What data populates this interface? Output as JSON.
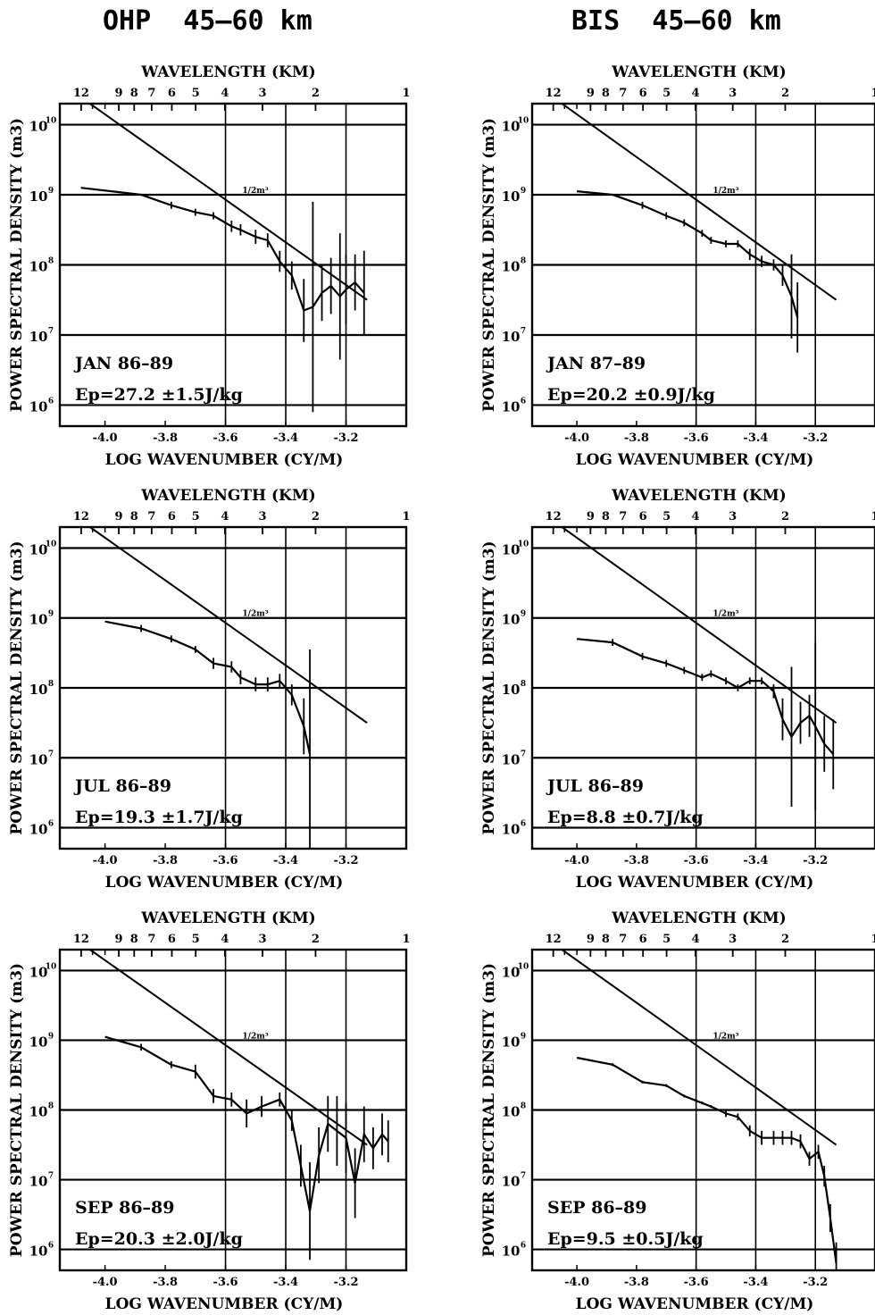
{
  "column_titles": [
    "OHP  45–60 km",
    "BIS  45–60 km"
  ],
  "chart_data": [
    {
      "type": "line",
      "station": "OHP",
      "season_label": "JAN 86–89",
      "ep_label": "Ep=27.2  ±1.5J/kg",
      "top_axis_label": "WAVELENGTH (KM)",
      "top_tick_labels": [
        "12",
        "9",
        "8",
        "7",
        "6",
        "5",
        "4",
        "3",
        "2",
        "1"
      ],
      "xlabel": "LOG WAVENUMBER (CY/M)",
      "ylabel": "POWER SPECTRAL DENSITY (m3)",
      "x_tick_labels": [
        "-4.0",
        "-3.8",
        "-3.6",
        "-3.4",
        "-3.2"
      ],
      "y_tick_labels": [
        "10",
        "10",
        "10",
        "10",
        "10"
      ],
      "y_tick_exponents": [
        "10",
        "9",
        "8",
        "7",
        "6"
      ],
      "slope_label": "1/2m³",
      "xlim": [
        -4.15,
        -3.0
      ],
      "ylim": [
        5.7,
        10.3
      ],
      "reference_line": {
        "x": [
          -4.05,
          -3.13
        ],
        "log10_y": [
          10.3,
          7.5
        ]
      },
      "x": [
        -4.08,
        -3.88,
        -3.78,
        -3.7,
        -3.64,
        -3.58,
        -3.55,
        -3.5,
        -3.46,
        -3.42,
        -3.38,
        -3.34,
        -3.31,
        -3.28,
        -3.25,
        -3.22,
        -3.2,
        -3.17,
        -3.14
      ],
      "log10_y": [
        9.1,
        9.0,
        8.85,
        8.75,
        8.7,
        8.55,
        8.5,
        8.4,
        8.35,
        8.05,
        7.85,
        7.35,
        7.4,
        7.6,
        7.7,
        7.55,
        7.65,
        7.75,
        7.6
      ],
      "error_half_log10": [
        0,
        0,
        0.05,
        0.05,
        0.05,
        0.08,
        0.08,
        0.1,
        0.1,
        0.15,
        0.2,
        0.45,
        1.5,
        0.4,
        0.4,
        0.9,
        0.5,
        0.4,
        0.6
      ]
    },
    {
      "type": "line",
      "station": "BIS",
      "season_label": "JAN 87–89",
      "ep_label": "Ep=20.2  ±0.9J/kg",
      "top_axis_label": "WAVELENGTH (KM)",
      "top_tick_labels": [
        "12",
        "9",
        "8",
        "7",
        "6",
        "5",
        "4",
        "3",
        "2",
        "1"
      ],
      "xlabel": "LOG WAVENUMBER (CY/M)",
      "ylabel": "POWER SPECTRAL DENSITY (m3)",
      "x_tick_labels": [
        "-4.0",
        "-3.8",
        "-3.6",
        "-3.4",
        "-3.2"
      ],
      "y_tick_labels": [
        "10",
        "10",
        "10",
        "10",
        "10"
      ],
      "y_tick_exponents": [
        "10",
        "9",
        "8",
        "7",
        "6"
      ],
      "slope_label": "1/2m³",
      "xlim": [
        -4.15,
        -3.0
      ],
      "ylim": [
        5.7,
        10.3
      ],
      "reference_line": {
        "x": [
          -4.05,
          -3.13
        ],
        "log10_y": [
          10.3,
          7.5
        ]
      },
      "x": [
        -4.0,
        -3.88,
        -3.78,
        -3.7,
        -3.64,
        -3.58,
        -3.55,
        -3.5,
        -3.46,
        -3.42,
        -3.38,
        -3.34,
        -3.31,
        -3.28,
        -3.26
      ],
      "log10_y": [
        9.05,
        9.0,
        8.85,
        8.7,
        8.6,
        8.45,
        8.35,
        8.3,
        8.3,
        8.15,
        8.05,
        8.0,
        7.85,
        7.55,
        7.25
      ],
      "error_half_log10": [
        0,
        0,
        0.05,
        0.05,
        0.05,
        0.05,
        0.05,
        0.05,
        0.05,
        0.08,
        0.08,
        0.08,
        0.15,
        0.6,
        0.5
      ]
    },
    {
      "type": "line",
      "station": "OHP",
      "season_label": "JUL 86–89",
      "ep_label": "Ep=19.3  ±1.7J/kg",
      "top_axis_label": "WAVELENGTH (KM)",
      "top_tick_labels": [
        "12",
        "9",
        "8",
        "7",
        "6",
        "5",
        "4",
        "3",
        "2",
        "1"
      ],
      "xlabel": "LOG WAVENUMBER (CY/M)",
      "ylabel": "POWER SPECTRAL DENSITY (m3)",
      "x_tick_labels": [
        "-4.0",
        "-3.8",
        "-3.6",
        "-3.4",
        "-3.2"
      ],
      "y_tick_labels": [
        "10",
        "10",
        "10",
        "10",
        "10"
      ],
      "y_tick_exponents": [
        "10",
        "9",
        "8",
        "7",
        "6"
      ],
      "slope_label": "1/2m³",
      "xlim": [
        -4.15,
        -3.0
      ],
      "ylim": [
        5.7,
        10.3
      ],
      "reference_line": {
        "x": [
          -4.05,
          -3.13
        ],
        "log10_y": [
          10.3,
          7.5
        ]
      },
      "x": [
        -4.0,
        -3.88,
        -3.78,
        -3.7,
        -3.64,
        -3.58,
        -3.55,
        -3.5,
        -3.46,
        -3.42,
        -3.38,
        -3.34,
        -3.32
      ],
      "log10_y": [
        8.95,
        8.85,
        8.7,
        8.55,
        8.35,
        8.3,
        8.15,
        8.05,
        8.05,
        8.1,
        7.9,
        7.45,
        7.05
      ],
      "error_half_log10": [
        0,
        0.05,
        0.05,
        0.05,
        0.08,
        0.08,
        0.1,
        0.1,
        0.1,
        0.1,
        0.15,
        0.4,
        1.5
      ]
    },
    {
      "type": "line",
      "station": "BIS",
      "season_label": "JUL 86–89",
      "ep_label": "Ep=8.8   ±0.7J/kg",
      "top_axis_label": "WAVELENGTH (KM)",
      "top_tick_labels": [
        "12",
        "9",
        "8",
        "7",
        "6",
        "5",
        "4",
        "3",
        "2",
        "1"
      ],
      "xlabel": "LOG WAVENUMBER (CY/M)",
      "ylabel": "POWER SPECTRAL DENSITY (m3)",
      "x_tick_labels": [
        "-4.0",
        "-3.8",
        "-3.6",
        "-3.4",
        "-3.2"
      ],
      "y_tick_labels": [
        "10",
        "10",
        "10",
        "10",
        "10"
      ],
      "y_tick_exponents": [
        "10",
        "9",
        "8",
        "7",
        "6"
      ],
      "slope_label": "1/2m³",
      "xlim": [
        -4.15,
        -3.0
      ],
      "ylim": [
        5.7,
        10.3
      ],
      "reference_line": {
        "x": [
          -4.05,
          -3.13
        ],
        "log10_y": [
          10.3,
          7.5
        ]
      },
      "x": [
        -4.0,
        -3.88,
        -3.78,
        -3.7,
        -3.64,
        -3.58,
        -3.55,
        -3.5,
        -3.46,
        -3.42,
        -3.38,
        -3.34,
        -3.31,
        -3.28,
        -3.25,
        -3.22,
        -3.2,
        -3.17,
        -3.14
      ],
      "log10_y": [
        8.7,
        8.65,
        8.45,
        8.35,
        8.25,
        8.15,
        8.2,
        8.1,
        8.0,
        8.1,
        8.1,
        7.95,
        7.55,
        7.3,
        7.5,
        7.6,
        7.45,
        7.2,
        7.05
      ],
      "error_half_log10": [
        0,
        0.05,
        0.05,
        0.05,
        0.05,
        0.05,
        0.05,
        0.05,
        0.05,
        0.05,
        0.05,
        0.1,
        0.3,
        1.0,
        0.3,
        0.3,
        1.2,
        0.4,
        0.5
      ]
    },
    {
      "type": "line",
      "station": "OHP",
      "season_label": "SEP 86–89",
      "ep_label": "Ep=20.3  ±2.0J/kg",
      "top_axis_label": "WAVELENGTH (KM)",
      "top_tick_labels": [
        "12",
        "9",
        "8",
        "7",
        "6",
        "5",
        "4",
        "3",
        "2",
        "1"
      ],
      "xlabel": "LOG WAVENUMBER (CY/M)",
      "ylabel": "POWER SPECTRAL DENSITY (m3)",
      "x_tick_labels": [
        "-4.0",
        "-3.8",
        "-3.6",
        "-3.4",
        "-3.2"
      ],
      "y_tick_labels": [
        "10",
        "10",
        "10",
        "10",
        "10"
      ],
      "y_tick_exponents": [
        "10",
        "9",
        "8",
        "7",
        "6"
      ],
      "slope_label": "1/2m³",
      "xlim": [
        -4.15,
        -3.0
      ],
      "ylim": [
        5.7,
        10.3
      ],
      "reference_line": {
        "x": [
          -4.05,
          -3.13
        ],
        "log10_y": [
          10.3,
          7.5
        ]
      },
      "x": [
        -4.0,
        -3.88,
        -3.78,
        -3.7,
        -3.64,
        -3.58,
        -3.53,
        -3.48,
        -3.42,
        -3.38,
        -3.35,
        -3.32,
        -3.29,
        -3.26,
        -3.23,
        -3.2,
        -3.17,
        -3.14,
        -3.11,
        -3.08,
        -3.06
      ],
      "log10_y": [
        9.05,
        8.9,
        8.65,
        8.55,
        8.2,
        8.15,
        7.95,
        8.05,
        8.15,
        7.85,
        7.2,
        6.55,
        7.35,
        7.8,
        7.7,
        7.6,
        6.95,
        7.65,
        7.45,
        7.65,
        7.55
      ],
      "error_half_log10": [
        0,
        0.05,
        0.05,
        0.1,
        0.1,
        0.1,
        0.2,
        0.15,
        0.1,
        0.15,
        0.3,
        0.7,
        0.4,
        0.4,
        0.5,
        0.5,
        0.5,
        0.4,
        0.3,
        0.3,
        0.3
      ]
    },
    {
      "type": "line",
      "station": "BIS",
      "season_label": "SEP 86–89",
      "ep_label": "Ep=9.5   ±0.5J/kg",
      "top_axis_label": "WAVELENGTH (KM)",
      "top_tick_labels": [
        "12",
        "9",
        "8",
        "7",
        "6",
        "5",
        "4",
        "3",
        "2",
        "1"
      ],
      "xlabel": "LOG WAVENUMBER (CY/M)",
      "ylabel": "POWER SPECTRAL DENSITY (m3)",
      "x_tick_labels": [
        "-4.0",
        "-3.8",
        "-3.6",
        "-3.4",
        "-3.2"
      ],
      "y_tick_labels": [
        "10",
        "10",
        "10",
        "10",
        "10"
      ],
      "y_tick_exponents": [
        "10",
        "9",
        "8",
        "7",
        "6"
      ],
      "slope_label": "1/2m³",
      "xlim": [
        -4.15,
        -3.0
      ],
      "ylim": [
        5.7,
        10.3
      ],
      "reference_line": {
        "x": [
          -4.05,
          -3.13
        ],
        "log10_y": [
          10.3,
          7.5
        ]
      },
      "x": [
        -4.0,
        -3.88,
        -3.78,
        -3.7,
        -3.64,
        -3.58,
        -3.55,
        -3.5,
        -3.46,
        -3.42,
        -3.38,
        -3.34,
        -3.31,
        -3.28,
        -3.25,
        -3.22,
        -3.19,
        -3.17,
        -3.15,
        -3.13
      ],
      "log10_y": [
        8.75,
        8.65,
        8.4,
        8.35,
        8.2,
        8.1,
        8.05,
        7.95,
        7.9,
        7.7,
        7.6,
        7.6,
        7.6,
        7.6,
        7.55,
        7.3,
        7.4,
        7.05,
        6.45,
        5.8
      ],
      "error_half_log10": [
        0,
        0.02,
        0.02,
        0.02,
        0.02,
        0.02,
        0.02,
        0.05,
        0.05,
        0.08,
        0.1,
        0.1,
        0.1,
        0.1,
        0.1,
        0.1,
        0.1,
        0.15,
        0.2,
        0.3
      ]
    }
  ]
}
